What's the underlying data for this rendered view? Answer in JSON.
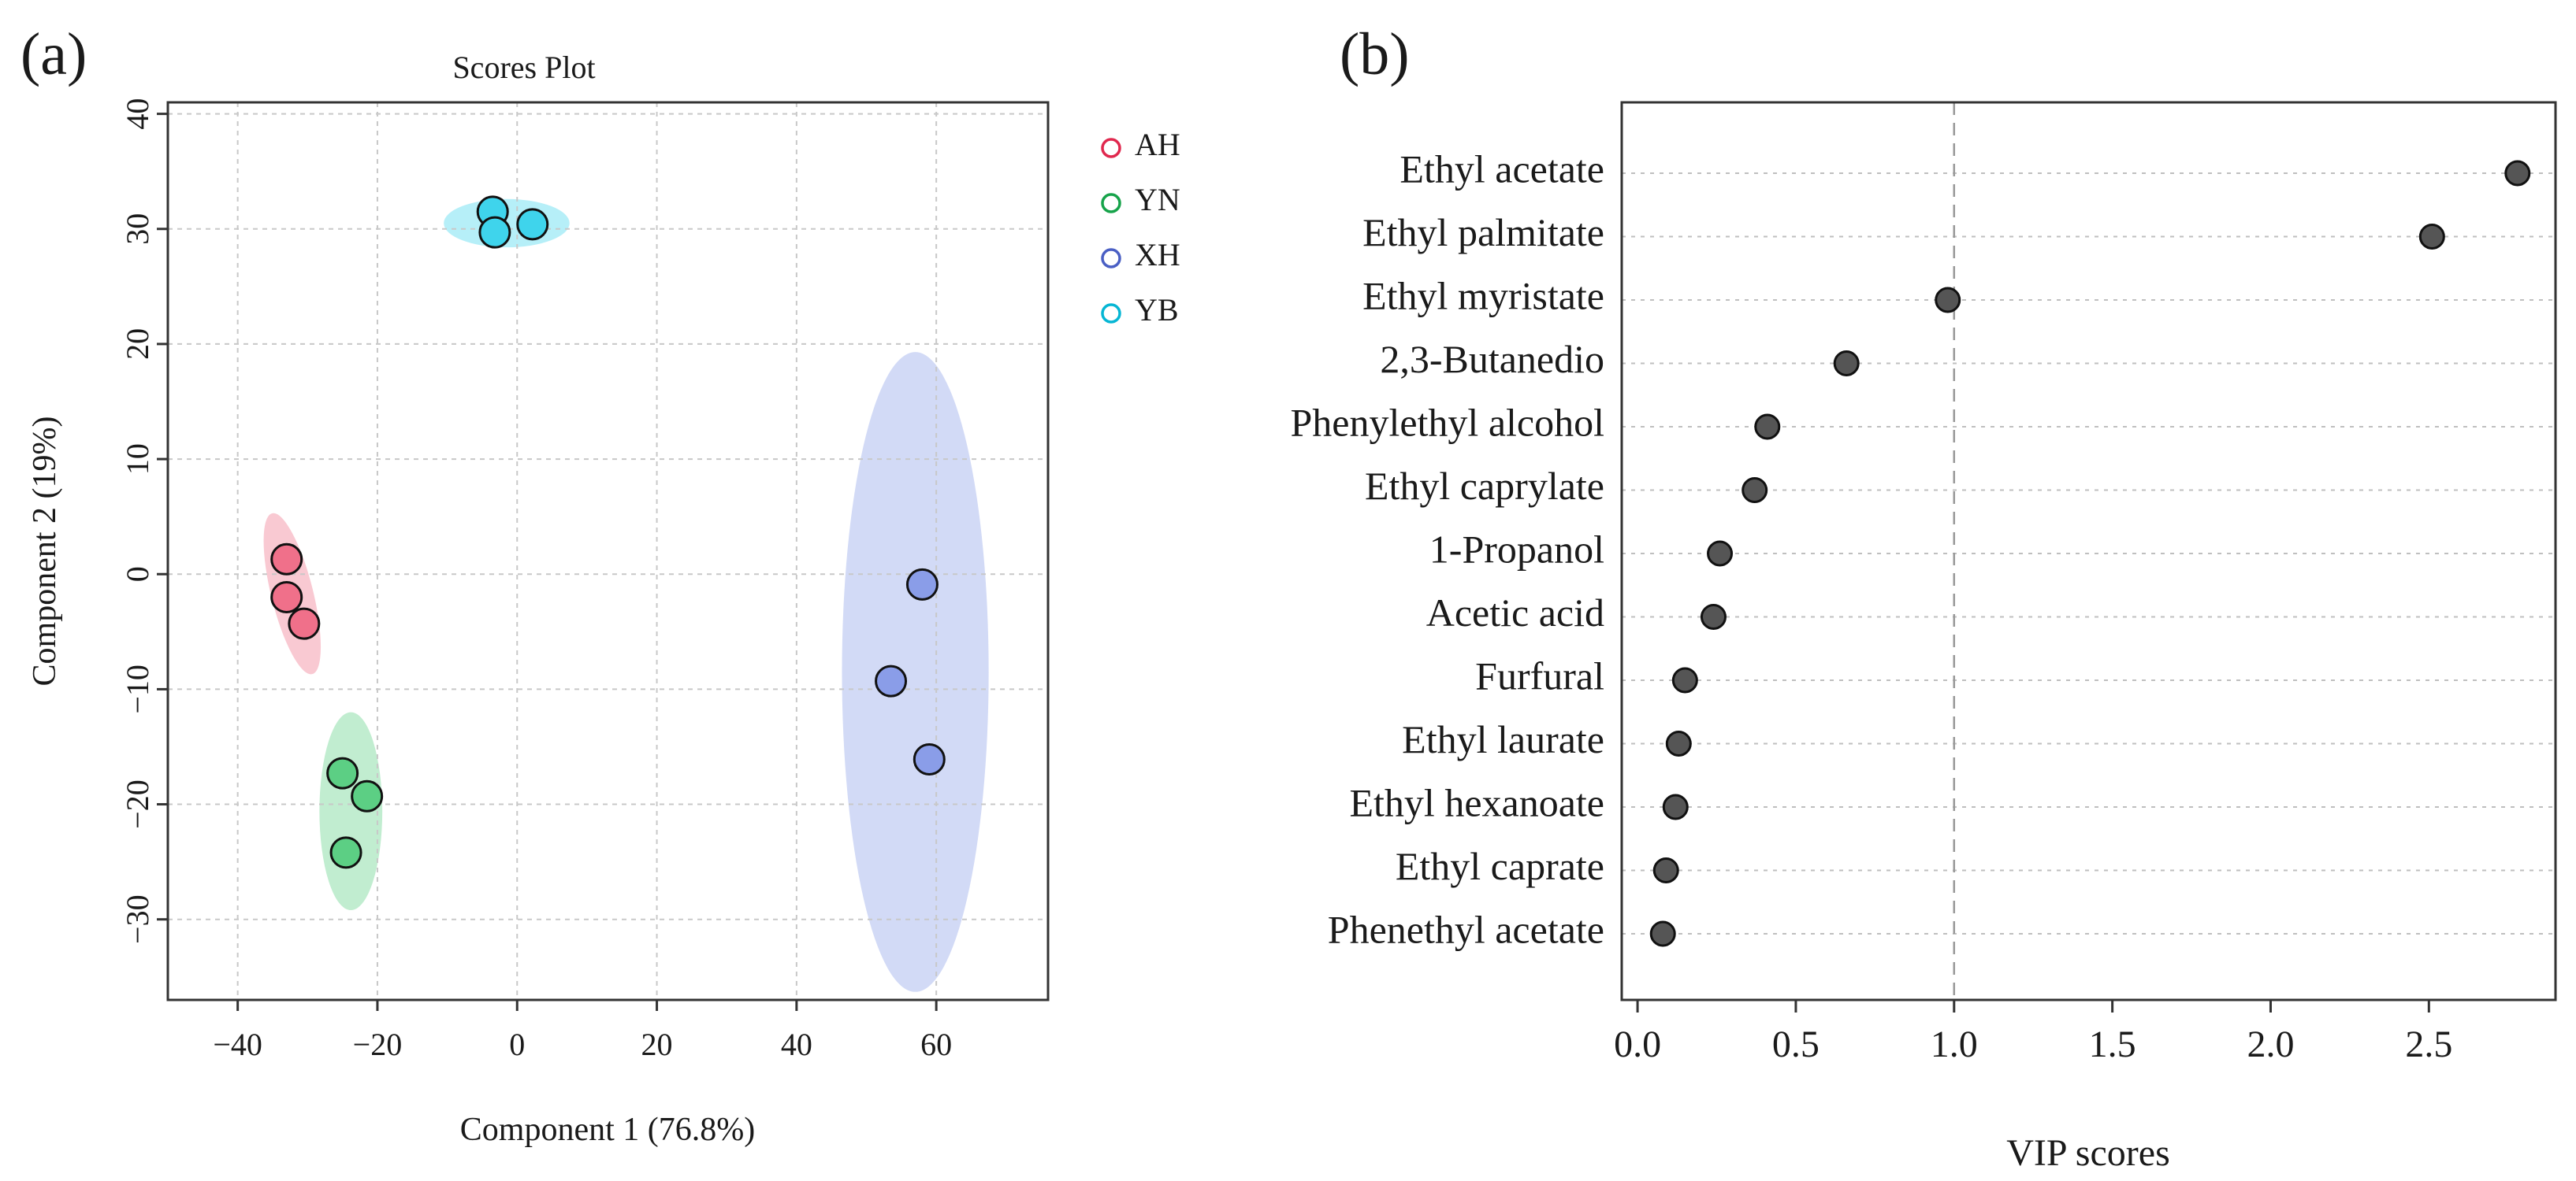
{
  "panels": {
    "a_label": "(a)",
    "b_label": "(b)"
  },
  "chart_data": [
    {
      "type": "scatter",
      "title": "Scores Plot",
      "xlabel": "Component 1 (76.8%)",
      "ylabel": "Component 2 (19%)",
      "xlim": [
        -50,
        76
      ],
      "ylim": [
        -37,
        41
      ],
      "xticks": [
        -40,
        -20,
        0,
        20,
        40,
        60
      ],
      "xtick_labels": [
        "−40",
        "−20",
        "0",
        "20",
        "40",
        "60"
      ],
      "yticks": [
        -30,
        -20,
        -10,
        0,
        10,
        20,
        30,
        40
      ],
      "ytick_labels": [
        "−30",
        "−20",
        "−10",
        "0",
        "10",
        "20",
        "30",
        "40"
      ],
      "grid": true,
      "legend_position": "right",
      "series": [
        {
          "name": "AH",
          "color": "#f0708a",
          "edge": "#e0284e",
          "points": [
            [
              -33,
              1.3
            ],
            [
              -33,
              -2.0
            ],
            [
              -30.5,
              -4.3
            ]
          ],
          "ellipse": {
            "center": [
              -32.2,
              -1.7
            ],
            "rx": 3.0,
            "ry": 7.2,
            "rotation_deg": -14
          }
        },
        {
          "name": "YN",
          "color": "#5ccf84",
          "edge": "#16a34a",
          "points": [
            [
              -25,
              -17.3
            ],
            [
              -21.5,
              -19.3
            ],
            [
              -24.5,
              -24.2
            ]
          ],
          "ellipse": {
            "center": [
              -23.8,
              -20.6
            ],
            "rx": 4.5,
            "ry": 8.6,
            "rotation_deg": 0
          }
        },
        {
          "name": "XH",
          "color": "#8a9de8",
          "edge": "#4a5fc4",
          "points": [
            [
              58,
              -0.9
            ],
            [
              53.5,
              -9.3
            ],
            [
              59,
              -16.1
            ]
          ],
          "ellipse": {
            "center": [
              57,
              -8.5
            ],
            "rx": 10.5,
            "ry": 27.8,
            "rotation_deg": 0
          }
        },
        {
          "name": "YB",
          "color": "#3fd4ec",
          "edge": "#06b6d4",
          "points": [
            [
              -3.5,
              31.5
            ],
            [
              -3.2,
              29.7
            ],
            [
              2.2,
              30.4
            ]
          ],
          "ellipse": {
            "center": [
              -1.5,
              30.5
            ],
            "rx": 9.0,
            "ry": 2.1,
            "rotation_deg": 0
          }
        }
      ]
    },
    {
      "type": "scatter",
      "xlabel": "VIP scores",
      "xlim": [
        -0.05,
        2.9
      ],
      "xticks": [
        0.0,
        0.5,
        1.0,
        1.5,
        2.0,
        2.5
      ],
      "xtick_labels": [
        "0.0",
        "0.5",
        "1.0",
        "1.5",
        "2.0",
        "2.5"
      ],
      "reference_line_x": 1.0,
      "grid": true,
      "color": "#555555",
      "categories": [
        "Ethyl acetate",
        "Ethyl palmitate",
        "Ethyl myristate",
        "2,3-Butanedio",
        "Phenylethyl alcohol",
        "Ethyl caprylate",
        "1-Propanol",
        "Acetic acid",
        "Furfural",
        "Ethyl laurate",
        "Ethyl hexanoate",
        "Ethyl caprate",
        "Phenethyl acetate"
      ],
      "values": [
        2.78,
        2.51,
        0.98,
        0.66,
        0.41,
        0.37,
        0.26,
        0.24,
        0.15,
        0.13,
        0.12,
        0.09,
        0.08
      ]
    }
  ]
}
